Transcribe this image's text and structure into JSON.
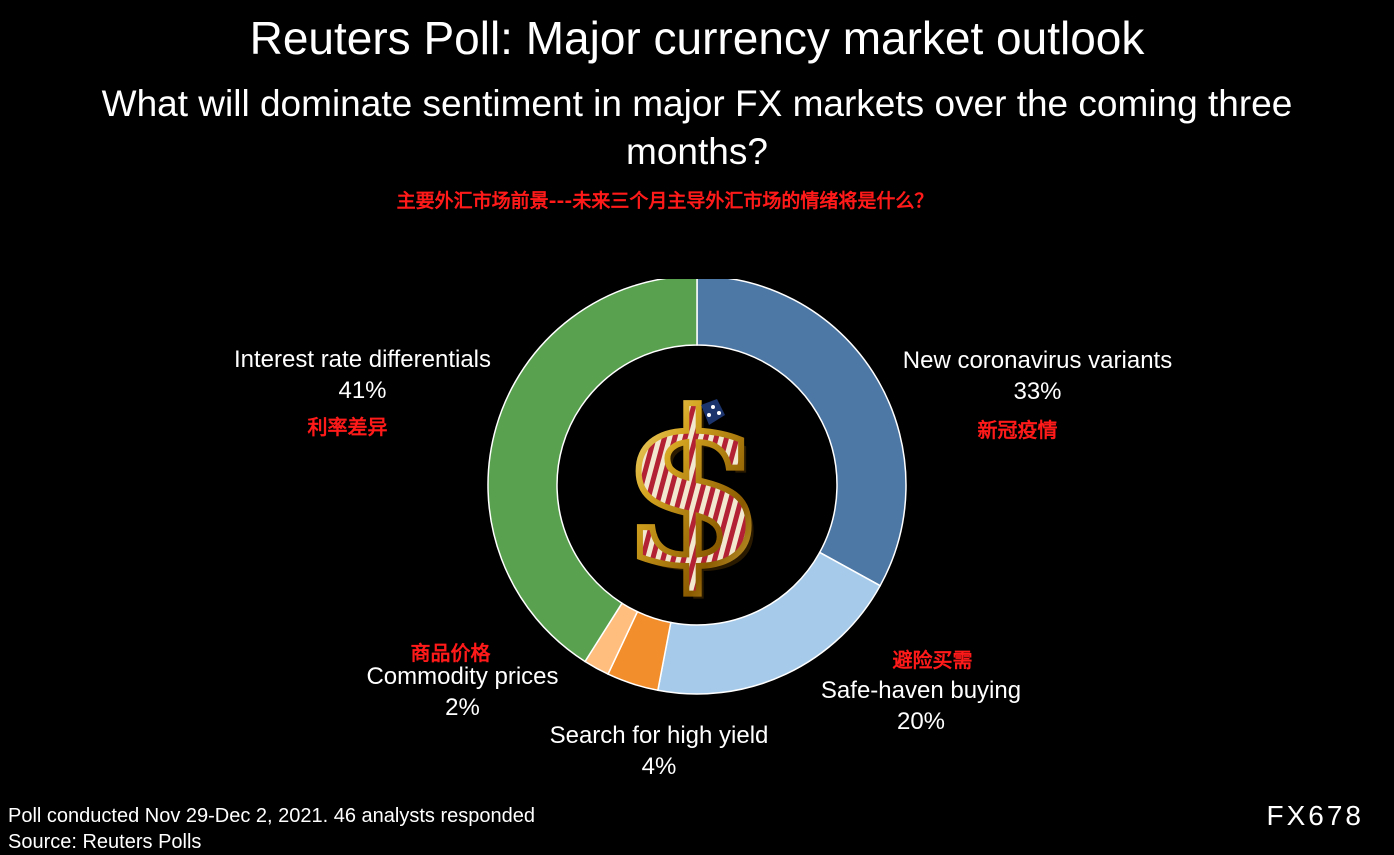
{
  "title": "Reuters Poll: Major currency market outlook",
  "subtitle": "What will dominate sentiment in major FX markets over the coming three months?",
  "title_cn": "主要外汇市场前景---未来三个月主导外汇市场的情绪将是什么？",
  "chart_data": {
    "type": "pie",
    "donut": true,
    "title": "Reuters Poll: Major currency market outlook",
    "subtitle": "What will dominate sentiment in major FX markets over the coming three months?",
    "categories": [
      "New coronavirus variants",
      "Safe-haven buying",
      "Search for high yield",
      "Commodity prices",
      "Interest rate differentials"
    ],
    "categories_cn": [
      "新冠疫情",
      "避险买需",
      "",
      "商品价格",
      "利率差异"
    ],
    "values": [
      33,
      20,
      4,
      2,
      41
    ],
    "value_labels": [
      "33%",
      "20%",
      "4%",
      "2%",
      "41%"
    ],
    "colors": [
      "#4d78a6",
      "#a6cbea",
      "#f28e2b",
      "#ffbe7d",
      "#59a14f"
    ],
    "center_icon": "dollar-sign-icon"
  },
  "footer": {
    "note": "Poll conducted Nov 29-Dec 2, 2021. 46 analysts responded",
    "source": "Source: Reuters Polls"
  },
  "watermark": "FX678"
}
